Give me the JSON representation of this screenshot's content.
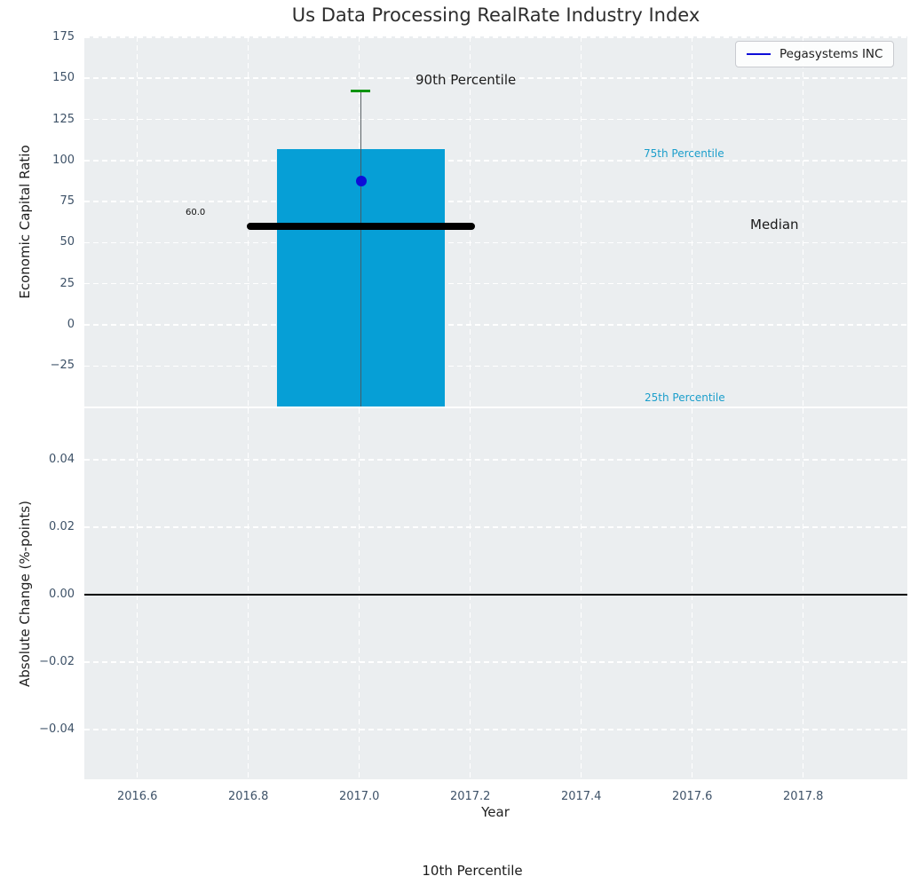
{
  "figure": {
    "title": "Us Data Processing RealRate Industry Index",
    "background": "#ffffff"
  },
  "legend": {
    "label": "Pegasystems INC",
    "line_color": "#0d0dd8",
    "position": "upper right"
  },
  "colors": {
    "bar": "#069fd6",
    "axes_background": "#ebeef0",
    "grid": "#ffffff",
    "tick_label": "#3e5268",
    "percentile_label": "#1b9ecb",
    "annotation_text": "#1a1a1a",
    "p90_cap": "#0a9410",
    "whisker": "#4f555a",
    "company_marker": "#0d0dd8",
    "median_line": "#000000",
    "zero_line": "#000000",
    "title_text": "#2d2d2d"
  },
  "chart_data": [
    {
      "type": "bar",
      "title": "Us Data Processing RealRate Industry Index",
      "ylabel": "Economic Capital Ratio",
      "x": [
        2017.0
      ],
      "bar_width": 0.3,
      "series": [
        {
          "name": "90th Percentile",
          "values": [
            142
          ]
        },
        {
          "name": "75th Percentile",
          "values": [
            106
          ]
        },
        {
          "name": "Median",
          "values": [
            60.0
          ]
        },
        {
          "name": "25th Percentile",
          "values": [
            -50
          ]
        },
        {
          "name": "10th Percentile",
          "values": [
            null
          ]
        },
        {
          "name": "Pegasystems INC",
          "values": [
            87.5
          ]
        }
      ],
      "xlim": [
        2016.5,
        2017.99
      ],
      "ylim": [
        -49.7,
        175.9
      ],
      "xticks": [
        2016.6,
        2016.8,
        2017.0,
        2017.2,
        2017.4,
        2017.6,
        2017.8
      ],
      "xtick_labels": [
        "2016.6",
        "2016.8",
        "2017.0",
        "2017.2",
        "2017.4",
        "2017.6",
        "2017.8"
      ],
      "yticks": [
        175,
        150,
        125,
        100,
        75,
        50,
        25,
        0,
        -25
      ],
      "ytick_labels": [
        "175",
        "150",
        "125",
        "100",
        "75",
        "50",
        "25",
        "0",
        "−25"
      ],
      "grid": true,
      "legend_position": "upper right",
      "annotations": {
        "p90": "90th Percentile",
        "p75": "75th Percentile",
        "median": "Median",
        "p25": "25th Percentile",
        "p10": "10th Percentile",
        "median_value": "60.0"
      }
    },
    {
      "type": "line",
      "ylabel": "Absolute Change (%-points)",
      "xlabel": "Year",
      "series": [],
      "zero_line_y": 0.0,
      "xlim": [
        2016.5,
        2017.99
      ],
      "ylim": [
        -0.055,
        0.055
      ],
      "xticks": [
        2016.6,
        2016.8,
        2017.0,
        2017.2,
        2017.4,
        2017.6,
        2017.8
      ],
      "xtick_labels": [
        "2016.6",
        "2016.8",
        "2017.0",
        "2017.2",
        "2017.4",
        "2017.6",
        "2017.8"
      ],
      "yticks": [
        0.04,
        0.02,
        0.0,
        -0.02,
        -0.04
      ],
      "ytick_labels": [
        "0.04",
        "0.02",
        "0.00",
        "−0.02",
        "−0.04"
      ],
      "grid": true
    }
  ]
}
